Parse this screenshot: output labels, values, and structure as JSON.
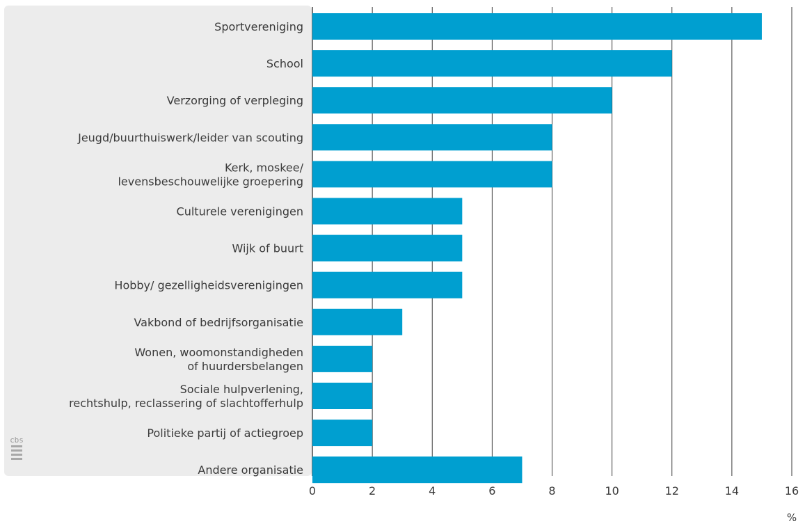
{
  "chart_data": {
    "type": "bar",
    "orientation": "horizontal",
    "categories": [
      [
        "Sportvereniging"
      ],
      [
        "School"
      ],
      [
        "Verzorging of verpleging"
      ],
      [
        "Jeugd/buurthuiswerk/leider van scouting"
      ],
      [
        "Kerk, moskee/",
        "levensbeschouwelijke groepering"
      ],
      [
        "Culturele verenigingen"
      ],
      [
        "Wijk of buurt"
      ],
      [
        "Hobby/ gezelligheidsverenigingen"
      ],
      [
        "Vakbond of bedrijfsorganisatie"
      ],
      [
        "Wonen, woomonstandigheden",
        "of huurdersbelangen"
      ],
      [
        "Sociale hulpverlening,",
        "rechtshulp,  reclassering of slachtofferhulp"
      ],
      [
        "Politieke partij of actiegroep"
      ],
      [
        "Andere organisatie"
      ]
    ],
    "values": [
      15,
      12,
      10,
      8,
      8,
      5,
      5,
      5,
      3,
      2,
      2,
      2,
      7
    ],
    "xlim": [
      0,
      16
    ],
    "xticks": [
      0,
      2,
      4,
      6,
      8,
      10,
      12,
      14,
      16
    ],
    "xunit": "%",
    "grid": true,
    "colors": {
      "bar": "#009fd0",
      "label_panel": "#ececec",
      "grid": "#3a3a3a",
      "text": "#3a3a3a"
    }
  },
  "logo": {
    "icon": "cbs-logo-icon",
    "text": "cbs"
  }
}
